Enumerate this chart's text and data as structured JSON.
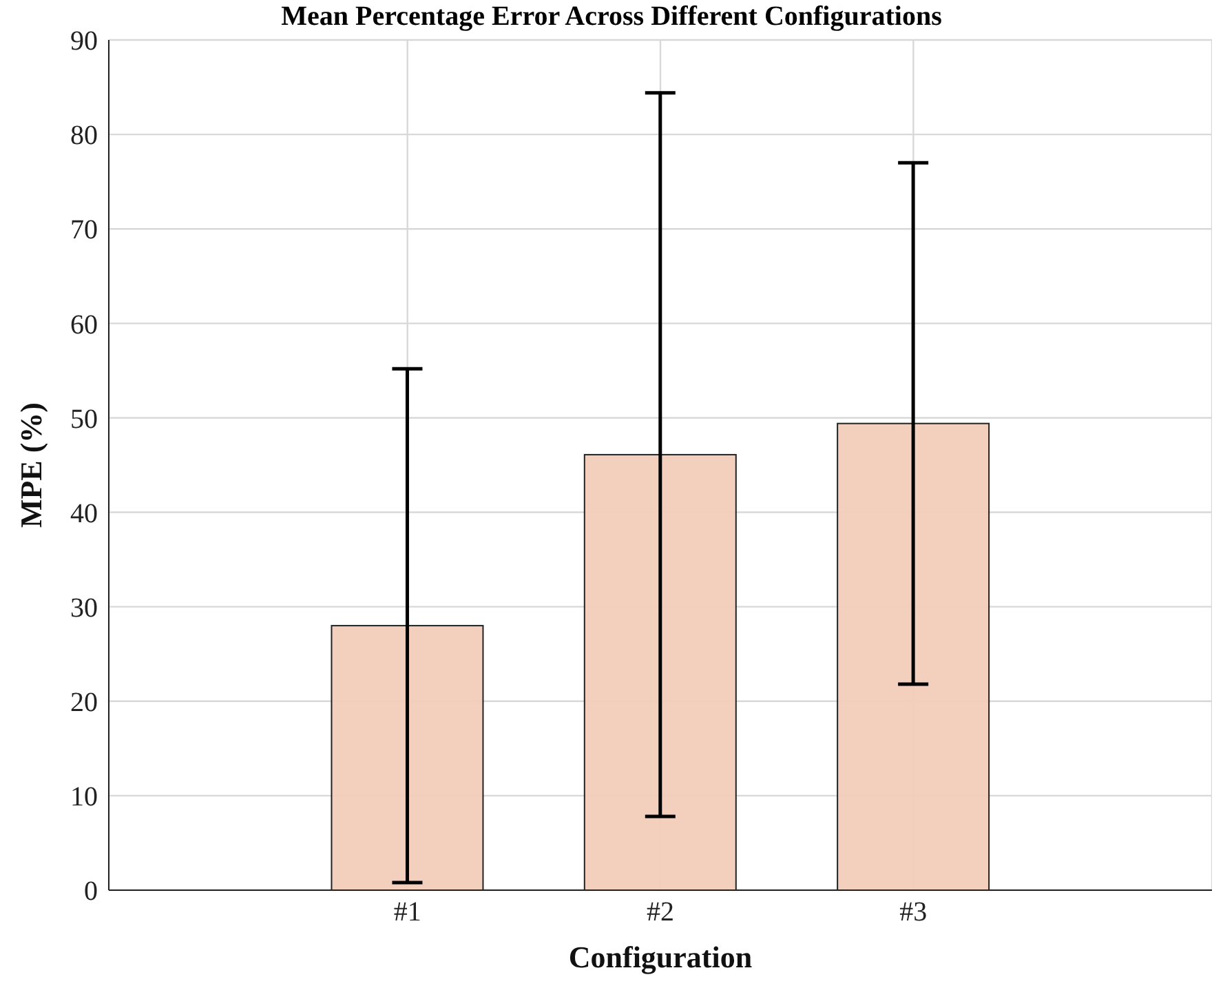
{
  "chart_data": {
    "type": "bar",
    "title": "Mean Percentage Error Across Different Configurations",
    "xlabel": "Configuration",
    "ylabel": "MPE (%)",
    "categories": [
      "#1",
      "#2",
      "#3"
    ],
    "values": [
      28.0,
      46.1,
      49.4
    ],
    "errors": [
      27.2,
      38.3,
      27.6
    ],
    "color": "#f2cdbb",
    "ylim": [
      0,
      90
    ],
    "yticks": [
      0,
      10,
      20,
      30,
      40,
      50,
      60,
      70,
      80,
      90
    ],
    "grid": true
  }
}
